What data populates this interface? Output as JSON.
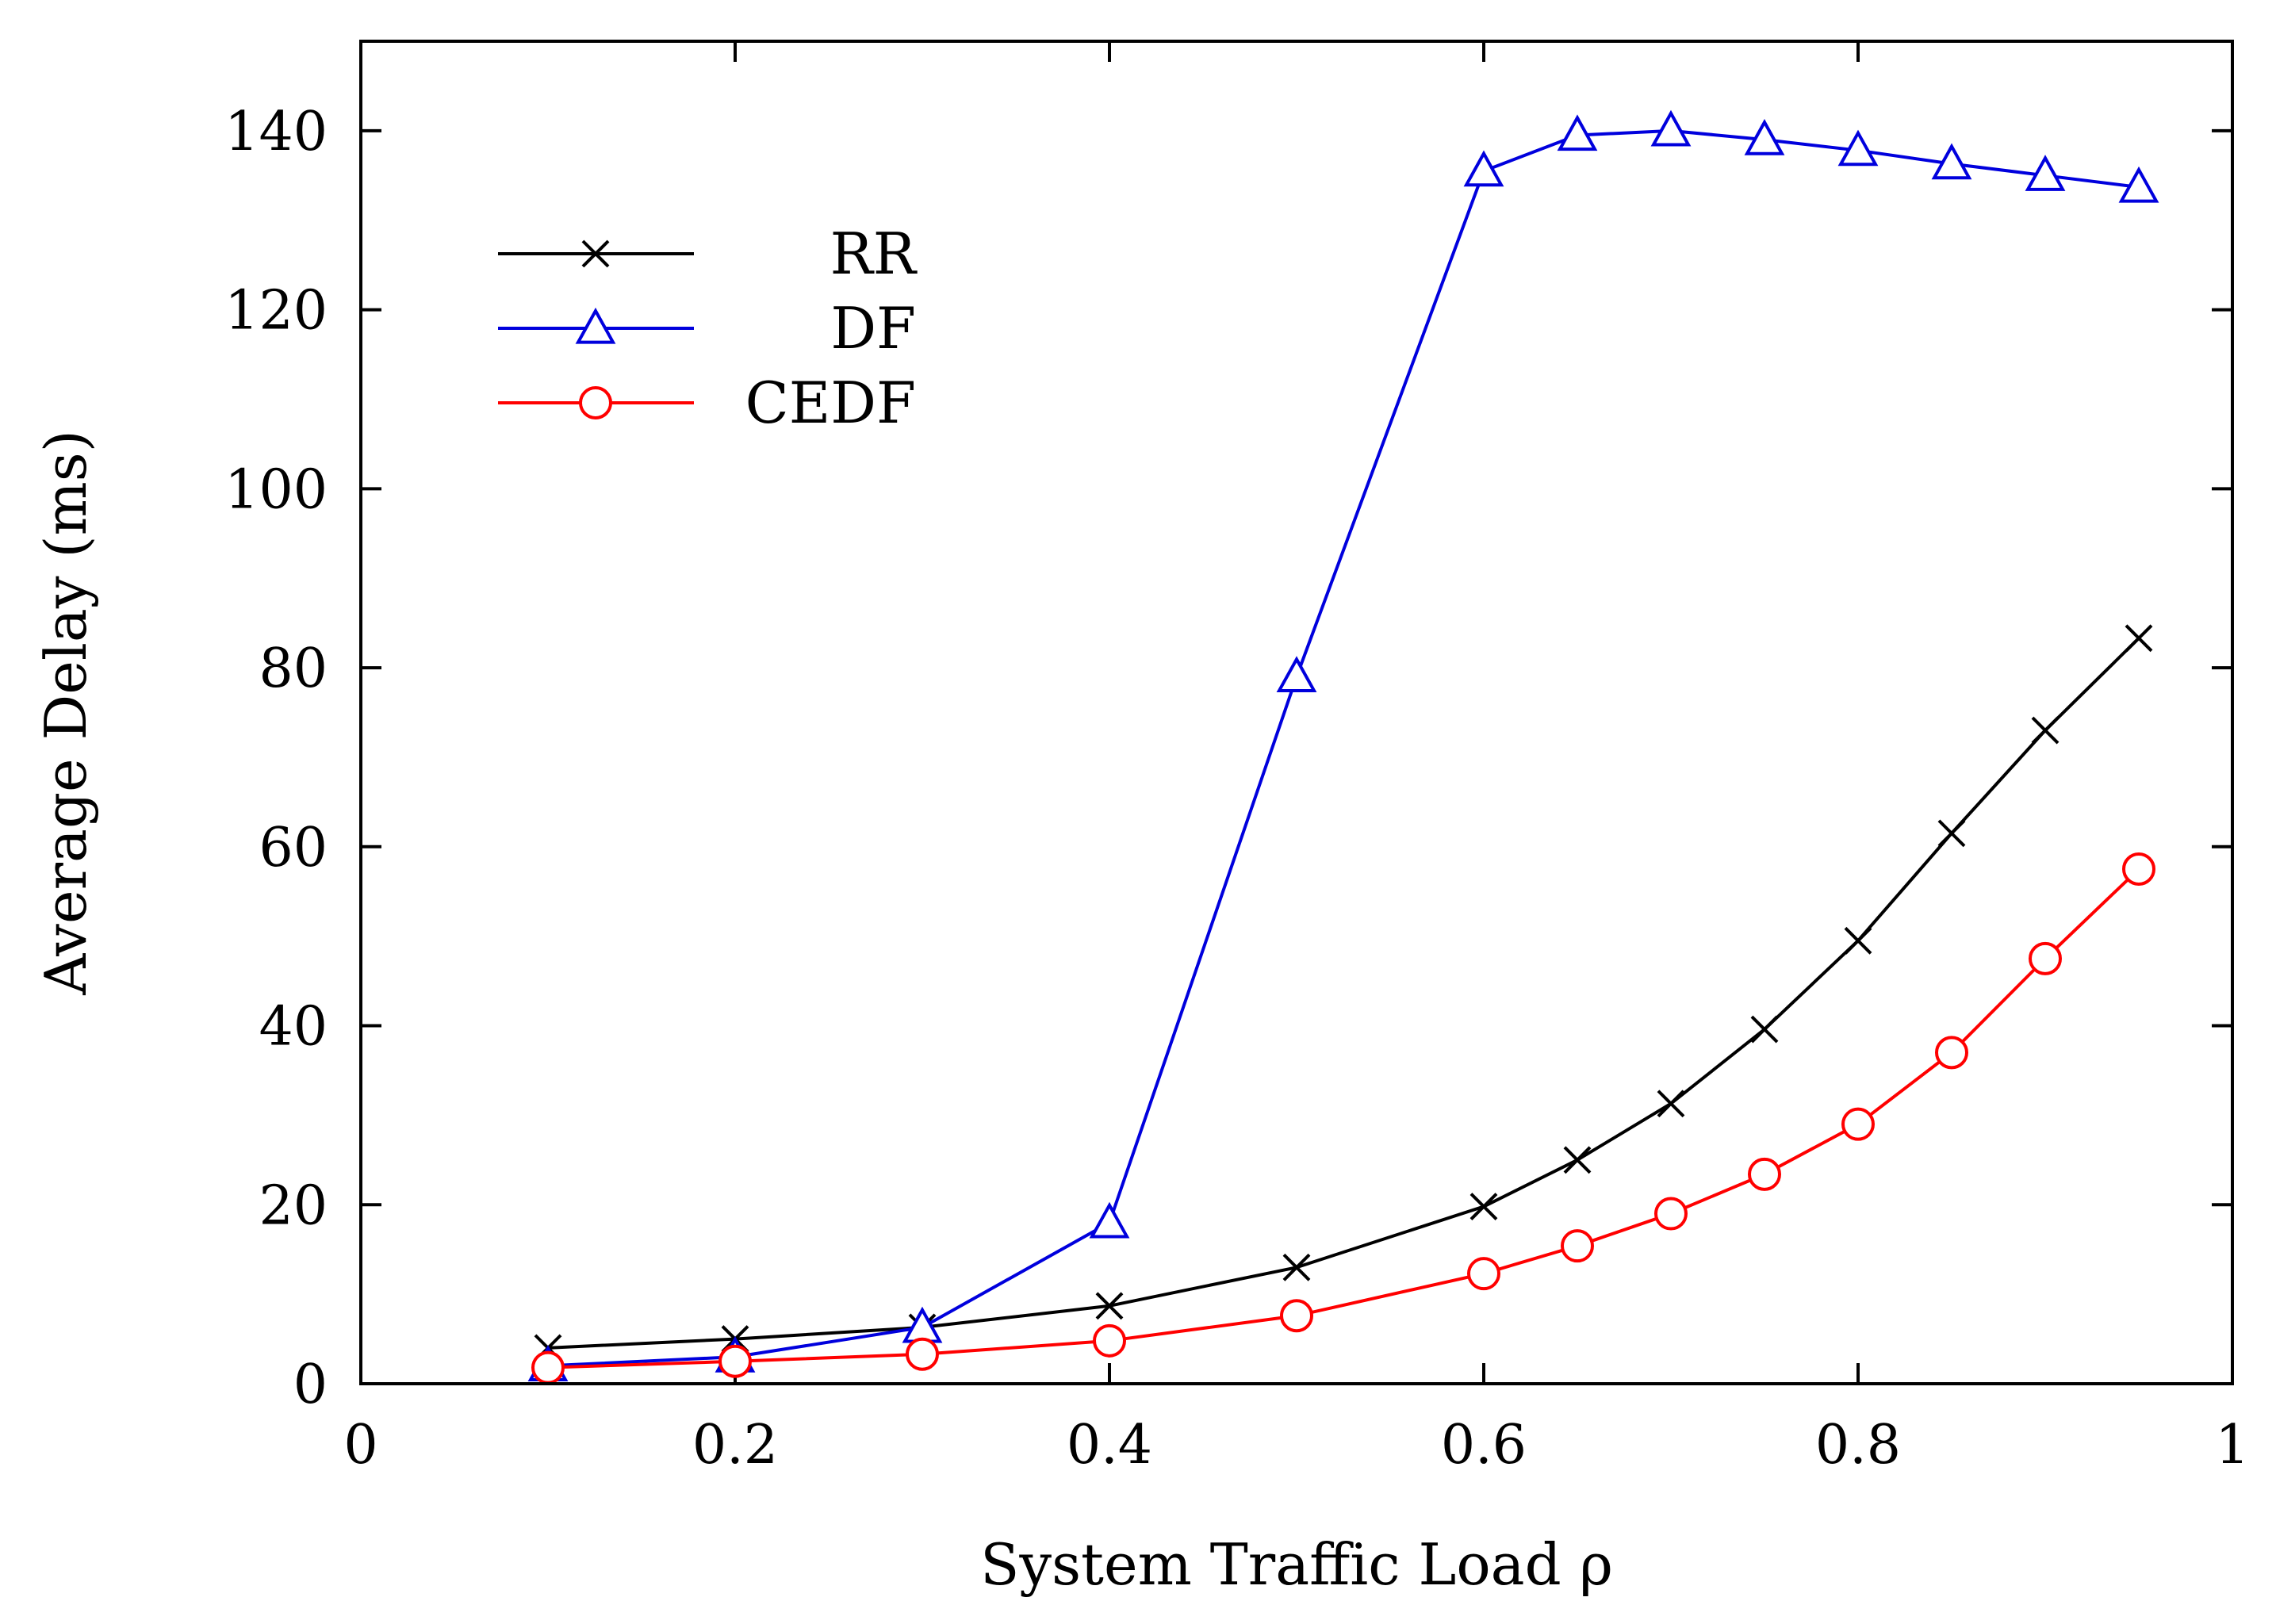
{
  "chart_data": {
    "type": "line",
    "title": "",
    "xlabel": "System Traffic Load ρ",
    "ylabel": "Average Delay (ms)",
    "xlim": [
      0,
      1
    ],
    "ylim": [
      0,
      150
    ],
    "x_ticks": [
      0,
      0.2,
      0.4,
      0.6,
      0.8,
      1
    ],
    "x_tick_labels": [
      "0",
      "0.2",
      "0.4",
      "0.6",
      "0.8",
      "1"
    ],
    "y_ticks": [
      0,
      20,
      40,
      60,
      80,
      100,
      120,
      140
    ],
    "y_tick_labels": [
      "0",
      "20",
      "40",
      "60",
      "80",
      "100",
      "120",
      "140"
    ],
    "grid": false,
    "legend_position": "top-left",
    "series": [
      {
        "name": "RR",
        "marker": "x",
        "color": "#000000",
        "x": [
          0.1,
          0.2,
          0.3,
          0.4,
          0.5,
          0.6,
          0.65,
          0.7,
          0.75,
          0.8,
          0.85,
          0.9,
          0.95
        ],
        "values": [
          4.0,
          5.0,
          6.3,
          8.7,
          13.0,
          19.8,
          25.0,
          31.3,
          39.6,
          49.5,
          61.5,
          73.0,
          83.3
        ]
      },
      {
        "name": "DF",
        "marker": "triangle",
        "color": "#0000dd",
        "x": [
          0.1,
          0.2,
          0.3,
          0.4,
          0.5,
          0.6,
          0.65,
          0.7,
          0.75,
          0.8,
          0.85,
          0.9,
          0.95
        ],
        "values": [
          2.0,
          3.0,
          6.3,
          18.0,
          79.0,
          135.5,
          139.5,
          140.0,
          139.0,
          137.8,
          136.3,
          135.0,
          133.7
        ]
      },
      {
        "name": "CEDF",
        "marker": "circle",
        "color": "#ff0000",
        "x": [
          0.1,
          0.2,
          0.3,
          0.4,
          0.5,
          0.6,
          0.65,
          0.7,
          0.75,
          0.8,
          0.85,
          0.9,
          0.95
        ],
        "values": [
          1.8,
          2.5,
          3.3,
          4.8,
          7.6,
          12.3,
          15.4,
          19.0,
          23.4,
          29.0,
          37.0,
          47.5,
          57.5
        ]
      }
    ]
  }
}
